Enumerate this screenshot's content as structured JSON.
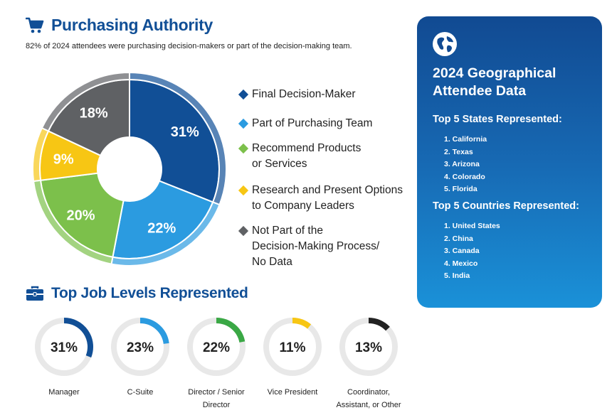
{
  "purchasing": {
    "title": "Purchasing Authority",
    "icon": "shopping-cart-icon",
    "subtitle": "82% of 2024 attendees were purchasing decision-makers or part of the decision-making team."
  },
  "chart_data": [
    {
      "type": "pie",
      "title": "Purchasing Authority",
      "categories": [
        "Final Decision-Maker",
        "Part of Purchasing Team",
        "Recommend Products or Services",
        "Research and Present Options to Company Leaders",
        "Not Part of the Decision-Making Process/ No Data"
      ],
      "values": [
        31,
        22,
        20,
        9,
        18
      ],
      "value_labels": [
        "31%",
        "22%",
        "20%",
        "9%",
        "18%"
      ],
      "colors": [
        "#114f96",
        "#2b9be0",
        "#7cc04b",
        "#f7c614",
        "#5f6164"
      ],
      "legend_labels": [
        "Final Decision-Maker",
        "Part of Purchasing Team",
        "Recommend Products\nor Services",
        "Research and Present Options\nto Company Leaders",
        "Not Part of the\nDecision-Making Process/\nNo Data"
      ],
      "legend": "right"
    },
    {
      "type": "donut",
      "title": "Top Job Levels Represented",
      "categories": [
        "Manager",
        "C-Suite",
        "Director / Senior Director",
        "Vice President",
        "Coordinator, Assistant, or Other"
      ],
      "values": [
        31,
        23,
        22,
        11,
        13
      ],
      "value_labels": [
        "31%",
        "23%",
        "22%",
        "11%",
        "13%"
      ],
      "display_labels": [
        "Manager",
        "C-Suite",
        "Director / Senior\nDirector",
        "Vice President",
        "Coordinator,\nAssistant, or Other"
      ],
      "colors": [
        "#114f96",
        "#2b9be0",
        "#3aa845",
        "#f7c614",
        "#222222"
      ],
      "track_color": "#e8e8e8"
    }
  ],
  "job_levels": {
    "title": "Top Job Levels Represented",
    "icon": "briefcase-icon"
  },
  "geo": {
    "icon": "globe-icon",
    "title": "2024 Geographical\nAttendee Data",
    "states_heading": "Top 5 States Represented:",
    "states": [
      "1. California",
      "2. Texas",
      "3. Arizona",
      "4. Colorado",
      "5. Florida"
    ],
    "countries_heading": "Top 5 Countries Represented:",
    "countries": [
      "1. United States",
      "2. China",
      "3. Canada",
      "4. Mexico",
      "5. India"
    ]
  }
}
